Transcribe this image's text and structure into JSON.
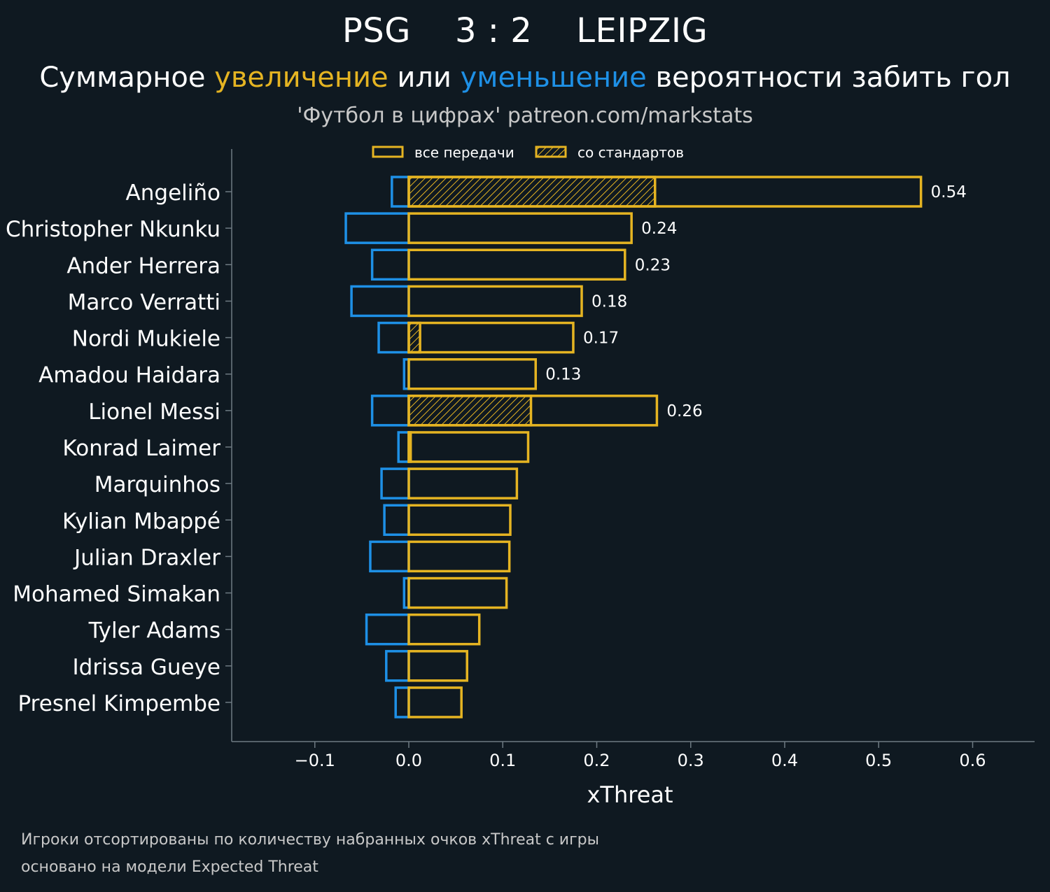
{
  "header": {
    "home_team": "PSG",
    "score": "3 : 2",
    "away_team": "LEIPZIG",
    "subtitle_part1": "Суммарное ",
    "subtitle_increase": "увеличение",
    "subtitle_part2": " или ",
    "subtitle_decrease": "уменьшение",
    "subtitle_part3": " вероятности забить гол",
    "credit": "'Футбол в цифрах' patreon.com/markstats"
  },
  "footer": {
    "note_line1": "Игроки отсортированы по количеству набранных очков xThreat с игры",
    "note_line2": "основано на модели Expected Threat"
  },
  "colors": {
    "background": "#0f1921",
    "positive": "#e5b422",
    "negative": "#1e90e6",
    "axis": "#6e7a82",
    "text": "#ffffff",
    "muted": "#c8c8c8"
  },
  "chart_data": {
    "type": "bar",
    "orientation": "horizontal",
    "xlabel": "xThreat",
    "xlim": [
      -0.19,
      0.665
    ],
    "xticks": [
      -0.1,
      0.0,
      0.1,
      0.2,
      0.3,
      0.4,
      0.5,
      0.6
    ],
    "xtick_labels": [
      "−0.1",
      "0.0",
      "0.1",
      "0.2",
      "0.3",
      "0.4",
      "0.5",
      "0.6"
    ],
    "legend": {
      "placement": "top-center",
      "all_passes": "все передачи",
      "set_pieces": "со стандартов"
    },
    "categories": [
      "Angeliño",
      "Christopher Nkunku",
      "Ander Herrera",
      "Marco Verratti",
      "Nordi Mukiele",
      "Amadou Haidara",
      "Lionel Messi",
      "Konrad Laimer",
      "Marquinhos",
      "Kylian Mbappé",
      "Julian Draxler",
      "Mohamed Simakan",
      "Tyler Adams",
      "Idrissa Gueye",
      "Presnel Kimpembe"
    ],
    "series": [
      {
        "name": "все передачи (увеличение)",
        "values": [
          0.545,
          0.237,
          0.23,
          0.184,
          0.175,
          0.135,
          0.264,
          0.127,
          0.115,
          0.108,
          0.107,
          0.104,
          0.075,
          0.062,
          0.056
        ]
      },
      {
        "name": "все передачи (уменьшение)",
        "values": [
          -0.018,
          -0.067,
          -0.039,
          -0.061,
          -0.032,
          -0.005,
          -0.039,
          -0.011,
          -0.029,
          -0.026,
          -0.041,
          -0.005,
          -0.045,
          -0.024,
          -0.014
        ]
      },
      {
        "name": "со стандартов",
        "values": [
          0.262,
          0,
          0,
          0,
          0.012,
          0,
          0.13,
          0.002,
          0,
          0,
          0,
          0,
          0,
          0,
          0
        ]
      }
    ],
    "data_labels": [
      "0.54",
      "0.24",
      "0.23",
      "0.18",
      "0.17",
      "0.13",
      "0.26",
      null,
      null,
      null,
      null,
      null,
      null,
      null,
      null
    ]
  }
}
